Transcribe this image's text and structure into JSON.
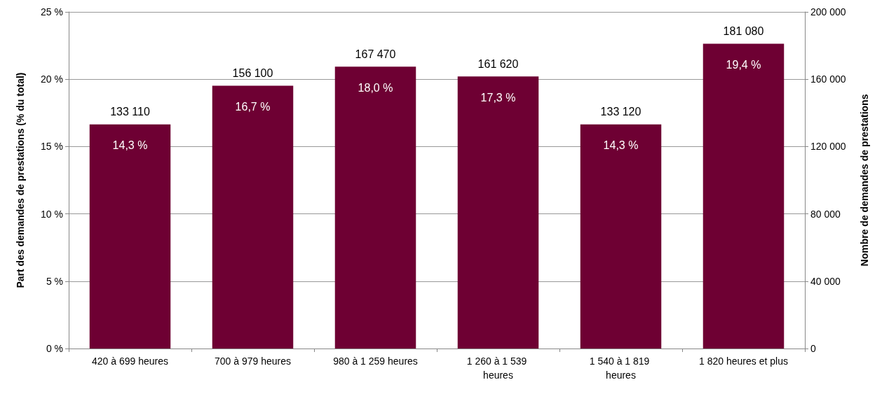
{
  "chart_data": {
    "type": "bar",
    "ylabel": "Part des demandes de prestations (% du total)",
    "y2label": "Nombre de demandes de prestations",
    "categories": [
      "420 à 699 heures",
      "700 à 979 heures",
      "980 à 1 259 heures",
      "1 260 à 1 539 heures",
      "1 540 à 1 819 heures",
      "1 820 heures et plus"
    ],
    "series": [
      {
        "axis": "y2",
        "color": "#6e0033",
        "values": [
          133110,
          156100,
          167470,
          161620,
          133120,
          181080
        ],
        "value_labels": [
          "133 110",
          "156 100",
          "167 470",
          "161 620",
          "133 120",
          "181 080"
        ]
      }
    ],
    "ylim": [
      0,
      25
    ],
    "yticks": [
      {
        "value": 0,
        "label": "0 %"
      },
      {
        "value": 5,
        "label": "5 %"
      },
      {
        "value": 10,
        "label": "10 %"
      },
      {
        "value": 15,
        "label": "15 %"
      },
      {
        "value": 20,
        "label": "20 %"
      },
      {
        "value": 25,
        "label": "25 %"
      }
    ],
    "y2lim": [
      0,
      200000
    ],
    "y2ticks": [
      0,
      {
        "value": 40000,
        "label": "40 000"
      },
      {
        "value": 80000,
        "label": "80 000"
      },
      {
        "value": 120000,
        "label": "120 000"
      },
      {
        "value": 160000,
        "label": "160 000"
      },
      {
        "value": 200000,
        "label": "200 000"
      }
    ],
    "annotations": [
      "14,3 %",
      "16,7 %",
      "18,0 %",
      "17,3 %",
      "14,3 %",
      "19,4 %"
    ],
    "grid": "y"
  }
}
